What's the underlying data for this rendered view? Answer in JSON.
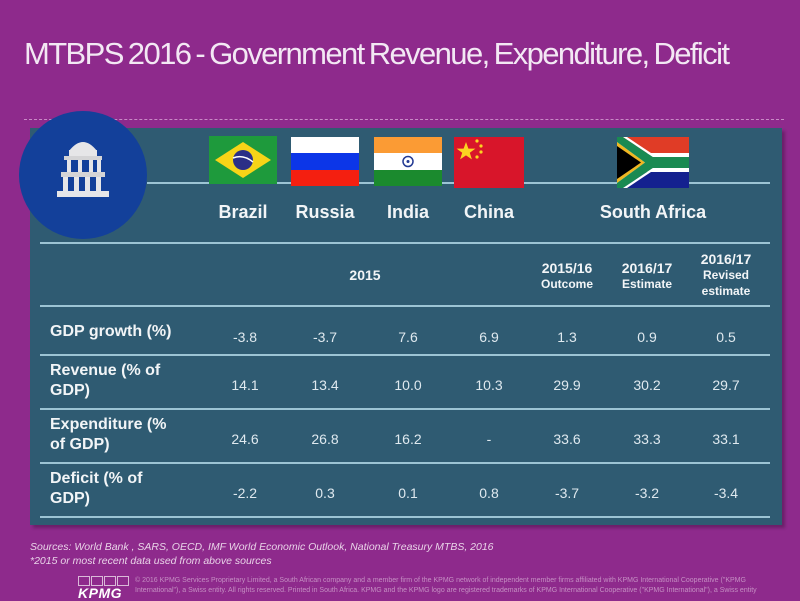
{
  "title": "MTBPS 2016 - Government Revenue, Expenditure, Deficit",
  "emblem_icon": "government-building-icon",
  "countries": [
    {
      "name": "Brazil",
      "flag": "brazil-flag-icon"
    },
    {
      "name": "Russia",
      "flag": "russia-flag-icon"
    },
    {
      "name": "India",
      "flag": "india-flag-icon"
    },
    {
      "name": "China",
      "flag": "china-flag-icon"
    },
    {
      "name": "South Africa",
      "flag": "south-africa-flag-icon"
    }
  ],
  "period_headers": {
    "brics_year": "2015",
    "sa": [
      {
        "year": "2015/16",
        "sub": "Outcome"
      },
      {
        "year": "2016/17",
        "sub": "Estimate"
      },
      {
        "year": "2016/17",
        "sub": "Revised estimate"
      }
    ]
  },
  "rows": [
    {
      "label": "GDP growth (%)",
      "values": [
        "-3.8",
        "-3.7",
        "7.6",
        "6.9",
        "1.3",
        "0.9",
        "0.5"
      ]
    },
    {
      "label": "Revenue (% of GDP)",
      "values": [
        "14.1",
        "13.4",
        "10.0",
        "10.3",
        "29.9",
        "30.2",
        "29.7"
      ]
    },
    {
      "label": "Expenditure (% of GDP)",
      "values": [
        "24.6",
        "26.8",
        "16.2",
        "-",
        "33.6",
        "33.3",
        "33.1"
      ]
    },
    {
      "label": "Deficit (% of GDP)",
      "values": [
        "-2.2",
        "0.3",
        "0.1",
        "0.8",
        "-3.7",
        "-3.2",
        "-3.4"
      ]
    }
  ],
  "sources": "Sources: World Bank , SARS, OECD, IMF World Economic Outlook, National Treasury MTBS, 2016",
  "footnote": "*2015 or most recent data used from above sources",
  "footer": {
    "logo": "KPMG",
    "copyright": "© 2016 KPMG Services Proprietary Limited, a South African company and a member firm of the KPMG network of independent member firms affiliated with KPMG International Cooperative (\"KPMG International\"), a Swiss entity. All rights reserved. Printed in South Africa. KPMG and the KPMG logo are registered trademarks of KPMG International Cooperative (\"KPMG International\"), a Swiss entity"
  },
  "colors": {
    "background": "#8e2a8c",
    "panel": "#2f5b72",
    "emblem": "#13409a",
    "rule": "#9cc4d4"
  }
}
